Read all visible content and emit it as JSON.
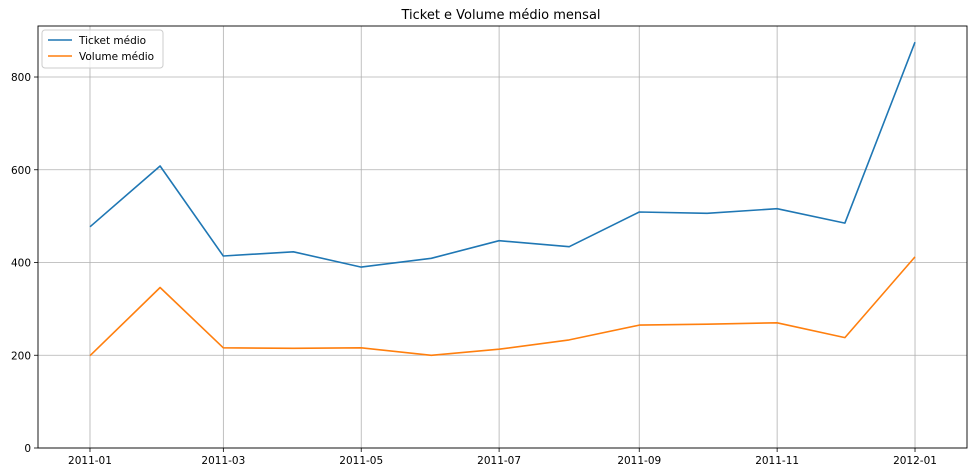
{
  "chart_data": {
    "type": "line",
    "title": "Ticket e Volume médio mensal",
    "xlabel": "",
    "ylabel": "",
    "x": [
      "2011-01-01",
      "2011-02-01",
      "2011-03-01",
      "2011-04-01",
      "2011-05-01",
      "2011-06-01",
      "2011-07-01",
      "2011-08-01",
      "2011-09-01",
      "2011-10-01",
      "2011-11-01",
      "2011-12-01",
      "2012-01-01"
    ],
    "x_ticks": [
      "2011-01",
      "2011-03",
      "2011-05",
      "2011-07",
      "2011-09",
      "2011-11",
      "2012-01"
    ],
    "y_ticks": [
      0,
      200,
      400,
      600,
      800
    ],
    "ylim": [
      0,
      910
    ],
    "grid": true,
    "legend_position": "top-left",
    "series": [
      {
        "name": "Ticket médio",
        "color": "#1f77b4",
        "values": [
          477,
          608,
          414,
          423,
          390,
          409,
          447,
          434,
          509,
          506,
          516,
          485,
          875
        ]
      },
      {
        "name": "Volume médio",
        "color": "#ff7f0e",
        "values": [
          199,
          346,
          216,
          215,
          216,
          200,
          213,
          233,
          265,
          267,
          270,
          238,
          412
        ]
      }
    ]
  }
}
